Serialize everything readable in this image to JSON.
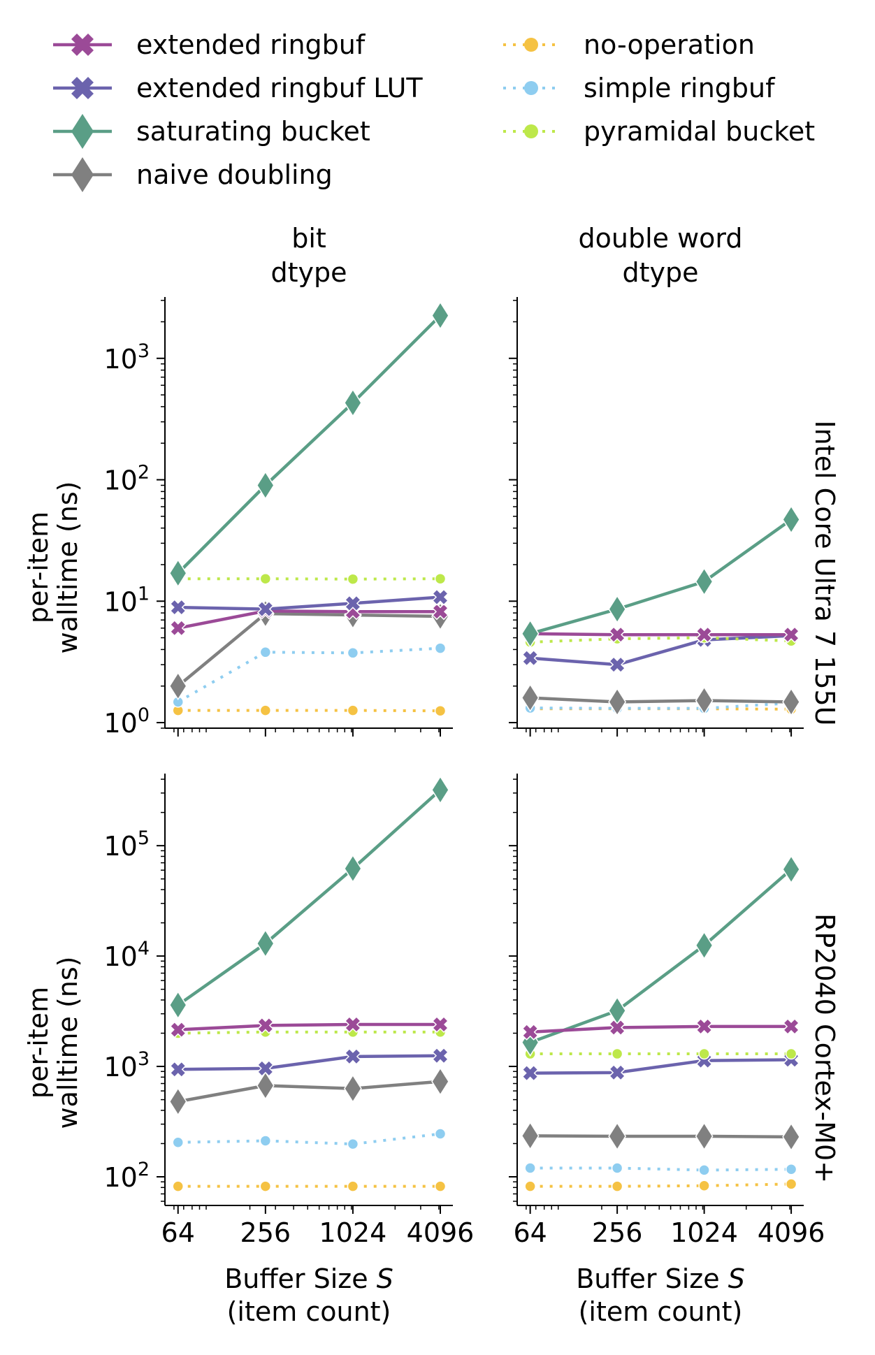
{
  "legend": {
    "placement": "top",
    "items": [
      {
        "key": "ext",
        "label": "extended ringbuf",
        "color": "#9b4a97",
        "marker": "x",
        "dash": "solid"
      },
      {
        "key": "lut",
        "label": "extended ringbuf LUT",
        "color": "#6b63ad",
        "marker": "x",
        "dash": "solid"
      },
      {
        "key": "sat",
        "label": "saturating bucket",
        "color": "#5a9e86",
        "marker": "diamond",
        "dash": "solid"
      },
      {
        "key": "naive",
        "label": "naive doubling",
        "color": "#808080",
        "marker": "diamond",
        "dash": "solid"
      },
      {
        "key": "noop",
        "label": "no-operation",
        "color": "#f5c243",
        "marker": "circle",
        "dash": "dotted"
      },
      {
        "key": "simple",
        "label": "simple ringbuf",
        "color": "#8ecdf0",
        "marker": "circle",
        "dash": "dotted"
      },
      {
        "key": "pyr",
        "label": "pyramidal bucket",
        "color": "#bde84a",
        "marker": "circle",
        "dash": "dotted"
      }
    ]
  },
  "columns": [
    {
      "title_line1": "bit",
      "title_line2": "dtype"
    },
    {
      "title_line1": "double word",
      "title_line2": "dtype"
    }
  ],
  "rows": [
    {
      "label": "Intel Core Ultra 7 155U"
    },
    {
      "label": "RP2040 Cortex-M0+"
    }
  ],
  "axes": {
    "ylabel_line1": "per-item",
    "ylabel_line2": "walltime (ns)",
    "xlabel_line1": "Buffer Size S",
    "xlabel_line2": "(item count)",
    "x_ticks": [
      "64",
      "256",
      "1024",
      "4096"
    ],
    "x_values": [
      64,
      256,
      1024,
      4096
    ],
    "x_scale": "log"
  },
  "chart_data": [
    {
      "type": "line",
      "row": "Intel Core Ultra 7 155U",
      "column": "bit dtype",
      "y_scale": "log",
      "ylim": [
        0.9,
        3200
      ],
      "y_ticks": [
        1,
        10,
        100,
        1000
      ],
      "x": [
        64,
        256,
        1024,
        4096
      ],
      "series": [
        {
          "name": "no-operation",
          "values": [
            1.26,
            1.26,
            1.26,
            1.25
          ]
        },
        {
          "name": "simple ringbuf",
          "values": [
            1.48,
            3.8,
            3.75,
            4.1
          ]
        },
        {
          "name": "naive doubling",
          "values": [
            2.0,
            7.9,
            7.7,
            7.5
          ]
        },
        {
          "name": "extended ringbuf",
          "values": [
            6.0,
            8.3,
            8.2,
            8.2
          ]
        },
        {
          "name": "extended ringbuf LUT",
          "values": [
            8.9,
            8.6,
            9.6,
            10.8
          ]
        },
        {
          "name": "pyramidal bucket",
          "values": [
            15.3,
            15.3,
            15.2,
            15.3
          ]
        },
        {
          "name": "saturating bucket",
          "values": [
            17,
            90,
            430,
            2250
          ]
        }
      ]
    },
    {
      "type": "line",
      "row": "Intel Core Ultra 7 155U",
      "column": "double word dtype",
      "y_scale": "log",
      "ylim": [
        0.9,
        3200
      ],
      "y_ticks": [
        1,
        10,
        100,
        1000
      ],
      "x": [
        64,
        256,
        1024,
        4096
      ],
      "series": [
        {
          "name": "no-operation",
          "values": [
            1.3,
            1.3,
            1.3,
            1.29
          ]
        },
        {
          "name": "simple ringbuf",
          "values": [
            1.32,
            1.31,
            1.31,
            1.45
          ]
        },
        {
          "name": "naive doubling",
          "values": [
            1.6,
            1.48,
            1.52,
            1.48
          ]
        },
        {
          "name": "extended ringbuf LUT",
          "values": [
            3.4,
            3.0,
            4.8,
            5.2
          ]
        },
        {
          "name": "pyramidal bucket",
          "values": [
            4.6,
            4.9,
            5.0,
            4.7
          ]
        },
        {
          "name": "extended ringbuf",
          "values": [
            5.4,
            5.3,
            5.3,
            5.3
          ]
        },
        {
          "name": "saturating bucket",
          "values": [
            5.4,
            8.6,
            14.5,
            47
          ]
        }
      ]
    },
    {
      "type": "line",
      "row": "RP2040 Cortex-M0+",
      "column": "bit dtype",
      "y_scale": "log",
      "ylim": [
        55,
        450000
      ],
      "y_ticks": [
        100,
        1000,
        10000,
        100000
      ],
      "x": [
        64,
        256,
        1024,
        4096
      ],
      "series": [
        {
          "name": "no-operation",
          "values": [
            82,
            82,
            82,
            82
          ]
        },
        {
          "name": "simple ringbuf",
          "values": [
            205,
            212,
            198,
            245
          ]
        },
        {
          "name": "naive doubling",
          "values": [
            480,
            670,
            630,
            730
          ]
        },
        {
          "name": "extended ringbuf LUT",
          "values": [
            940,
            960,
            1230,
            1250
          ]
        },
        {
          "name": "pyramidal bucket",
          "values": [
            2000,
            2050,
            2050,
            2050
          ]
        },
        {
          "name": "extended ringbuf",
          "values": [
            2150,
            2350,
            2400,
            2400
          ]
        },
        {
          "name": "saturating bucket",
          "values": [
            3600,
            13000,
            62000,
            320000
          ]
        }
      ]
    },
    {
      "type": "line",
      "row": "RP2040 Cortex-M0+",
      "column": "double word dtype",
      "y_scale": "log",
      "ylim": [
        55,
        450000
      ],
      "y_ticks": [
        100,
        1000,
        10000,
        100000
      ],
      "x": [
        64,
        256,
        1024,
        4096
      ],
      "series": [
        {
          "name": "no-operation",
          "values": [
            82,
            82,
            83,
            86
          ]
        },
        {
          "name": "simple ringbuf",
          "values": [
            120,
            120,
            115,
            117
          ]
        },
        {
          "name": "naive doubling",
          "values": [
            235,
            233,
            233,
            230
          ]
        },
        {
          "name": "extended ringbuf LUT",
          "values": [
            870,
            880,
            1130,
            1150
          ]
        },
        {
          "name": "pyramidal bucket",
          "values": [
            1300,
            1300,
            1300,
            1300
          ]
        },
        {
          "name": "saturating bucket",
          "values": [
            1650,
            3200,
            12500,
            61000
          ]
        },
        {
          "name": "extended ringbuf",
          "values": [
            2050,
            2250,
            2300,
            2300
          ]
        }
      ]
    }
  ]
}
